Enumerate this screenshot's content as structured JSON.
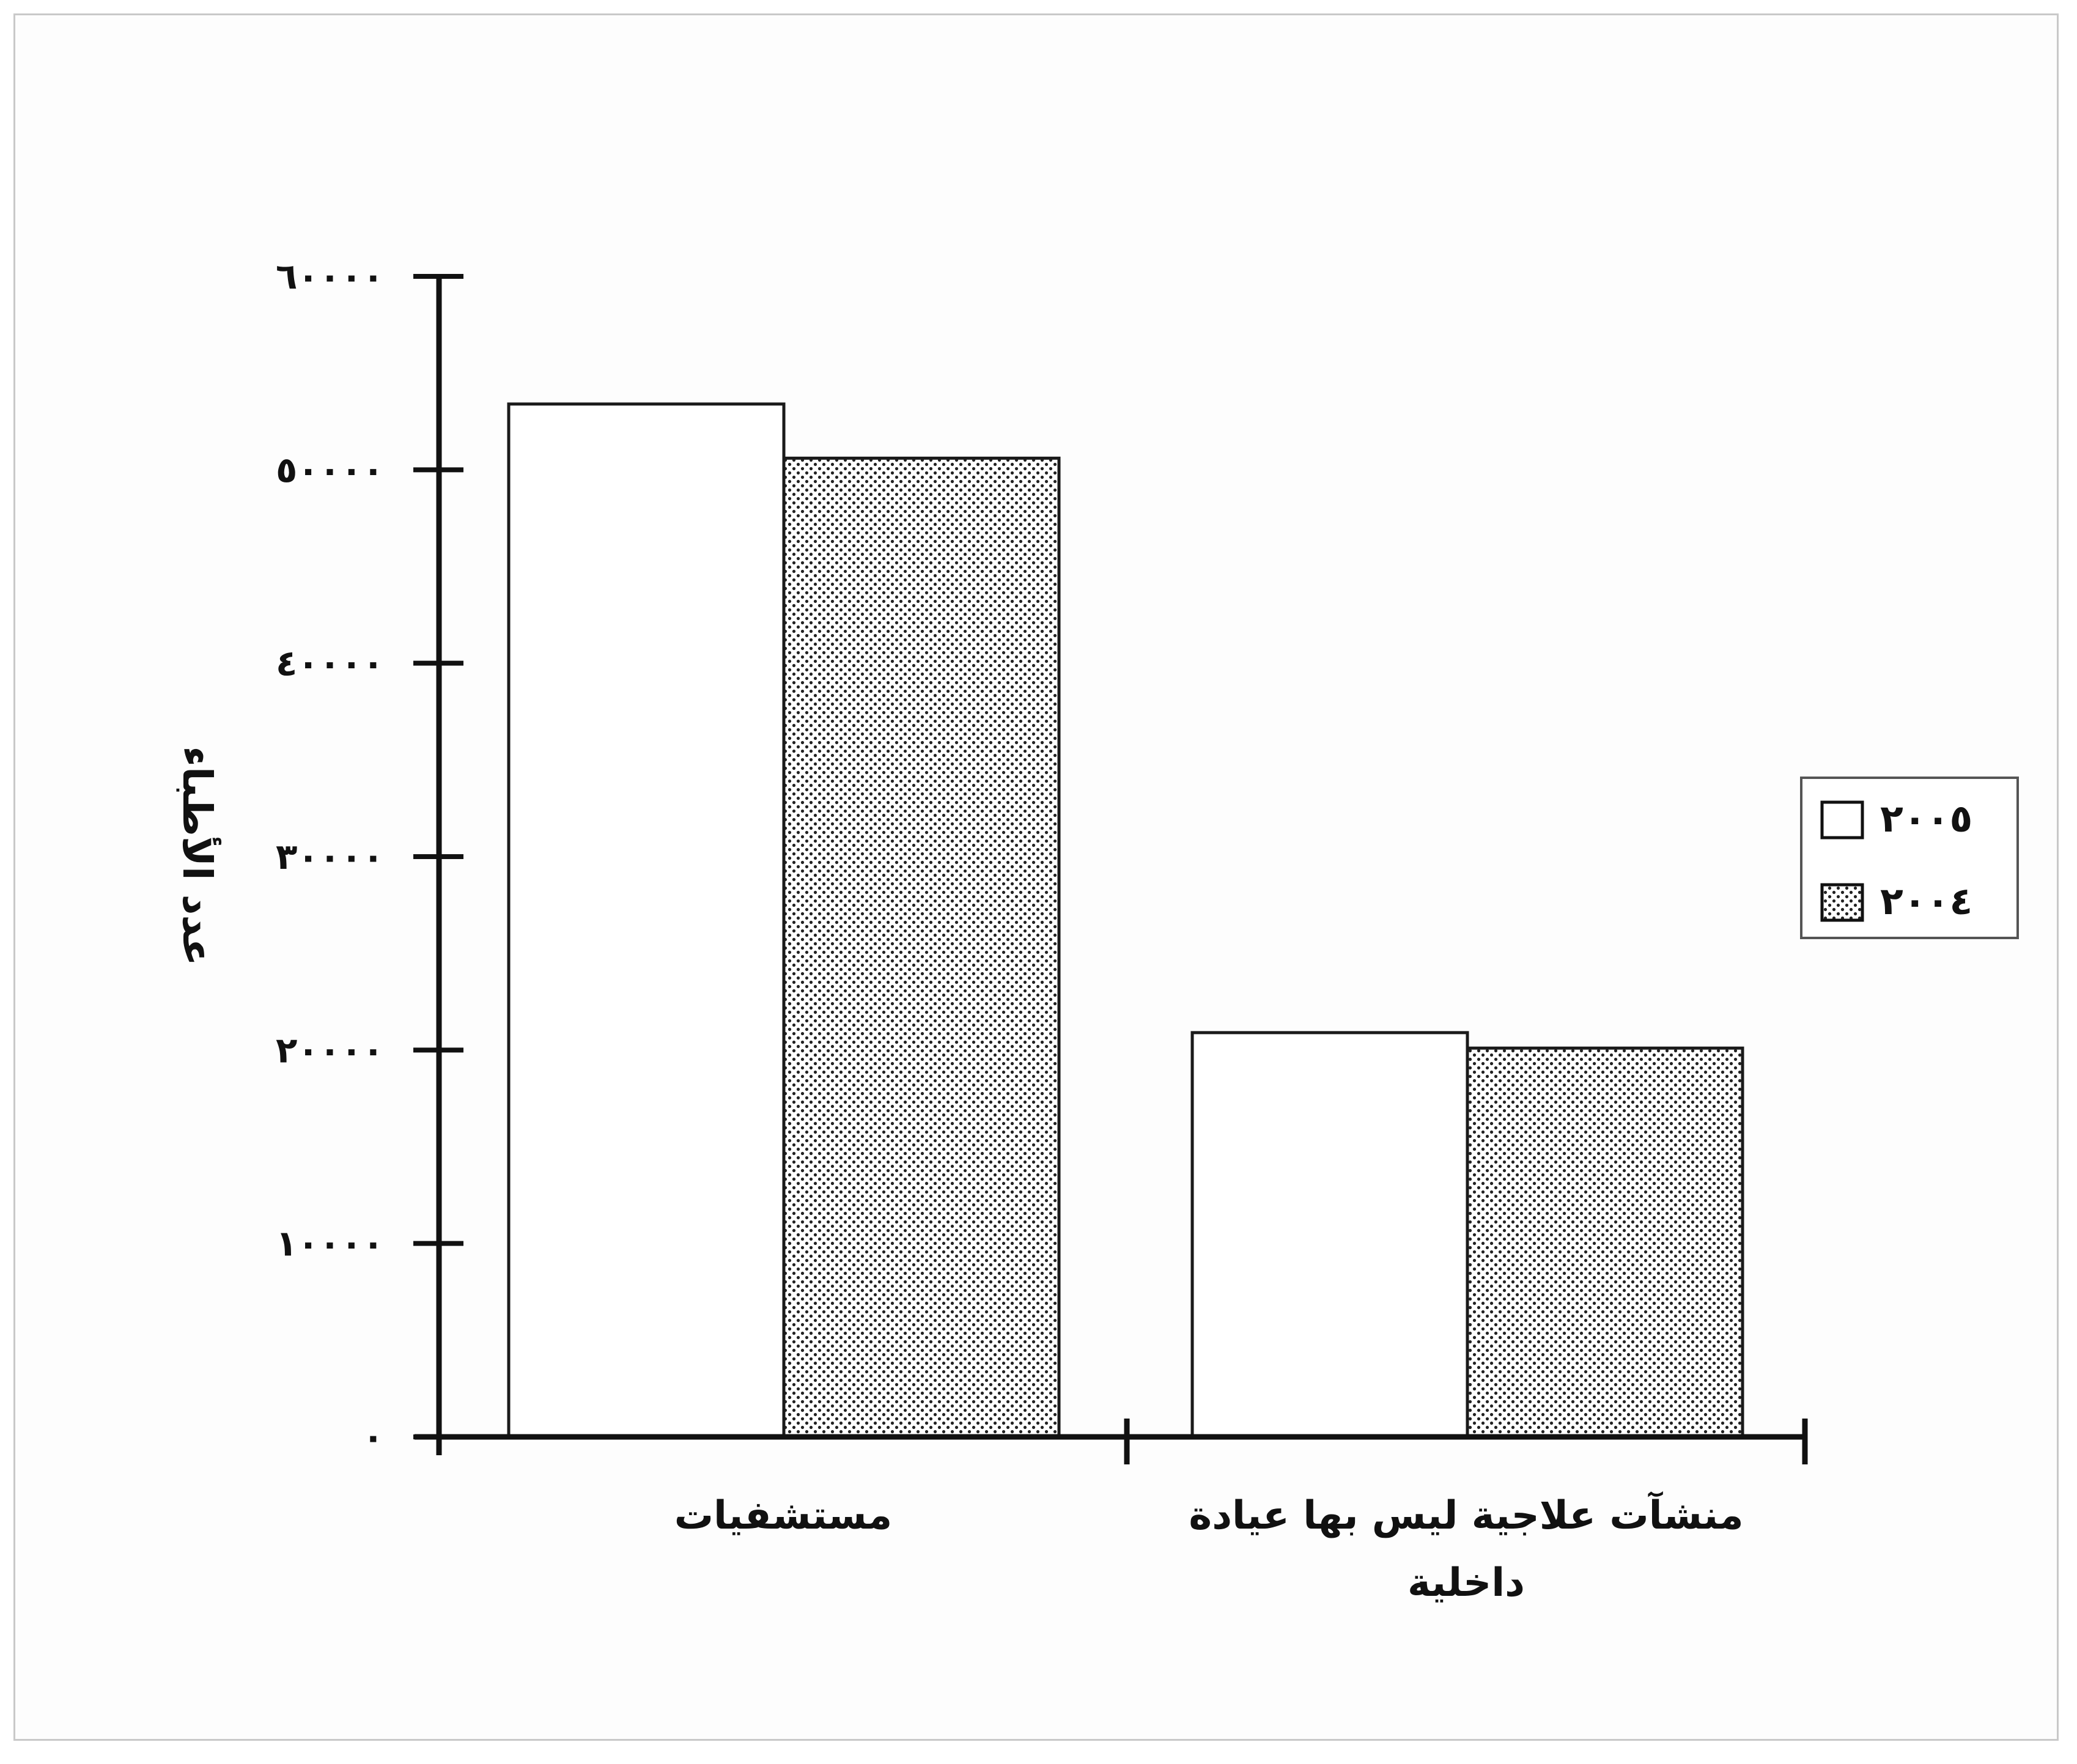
{
  "chart_data": {
    "type": "bar",
    "title": "",
    "xlabel": "",
    "ylabel": "عدد الأطباء",
    "ylim": [
      0,
      60000
    ],
    "y_ticks": [
      0,
      10000,
      20000,
      30000,
      40000,
      50000,
      60000
    ],
    "y_tick_labels": [
      "٠",
      "١٠٠٠٠",
      "٢٠٠٠٠",
      "٣٠٠٠٠",
      "٤٠٠٠٠",
      "٥٠٠٠٠",
      "٦٠٠٠٠"
    ],
    "categories": [
      [
        "مستشفيات"
      ],
      [
        "منشآت علاجية ليس بها عيادة",
        "داخلية"
      ]
    ],
    "series": [
      {
        "name": "٢٠٠٥",
        "values": [
          53400,
          20900
        ],
        "color": "#ffffff",
        "pattern": "none"
      },
      {
        "name": "٢٠٠٤",
        "values": [
          50600,
          20100
        ],
        "color": "#ffffff",
        "pattern": "dots"
      }
    ],
    "legend_position": "right",
    "grid": false
  }
}
